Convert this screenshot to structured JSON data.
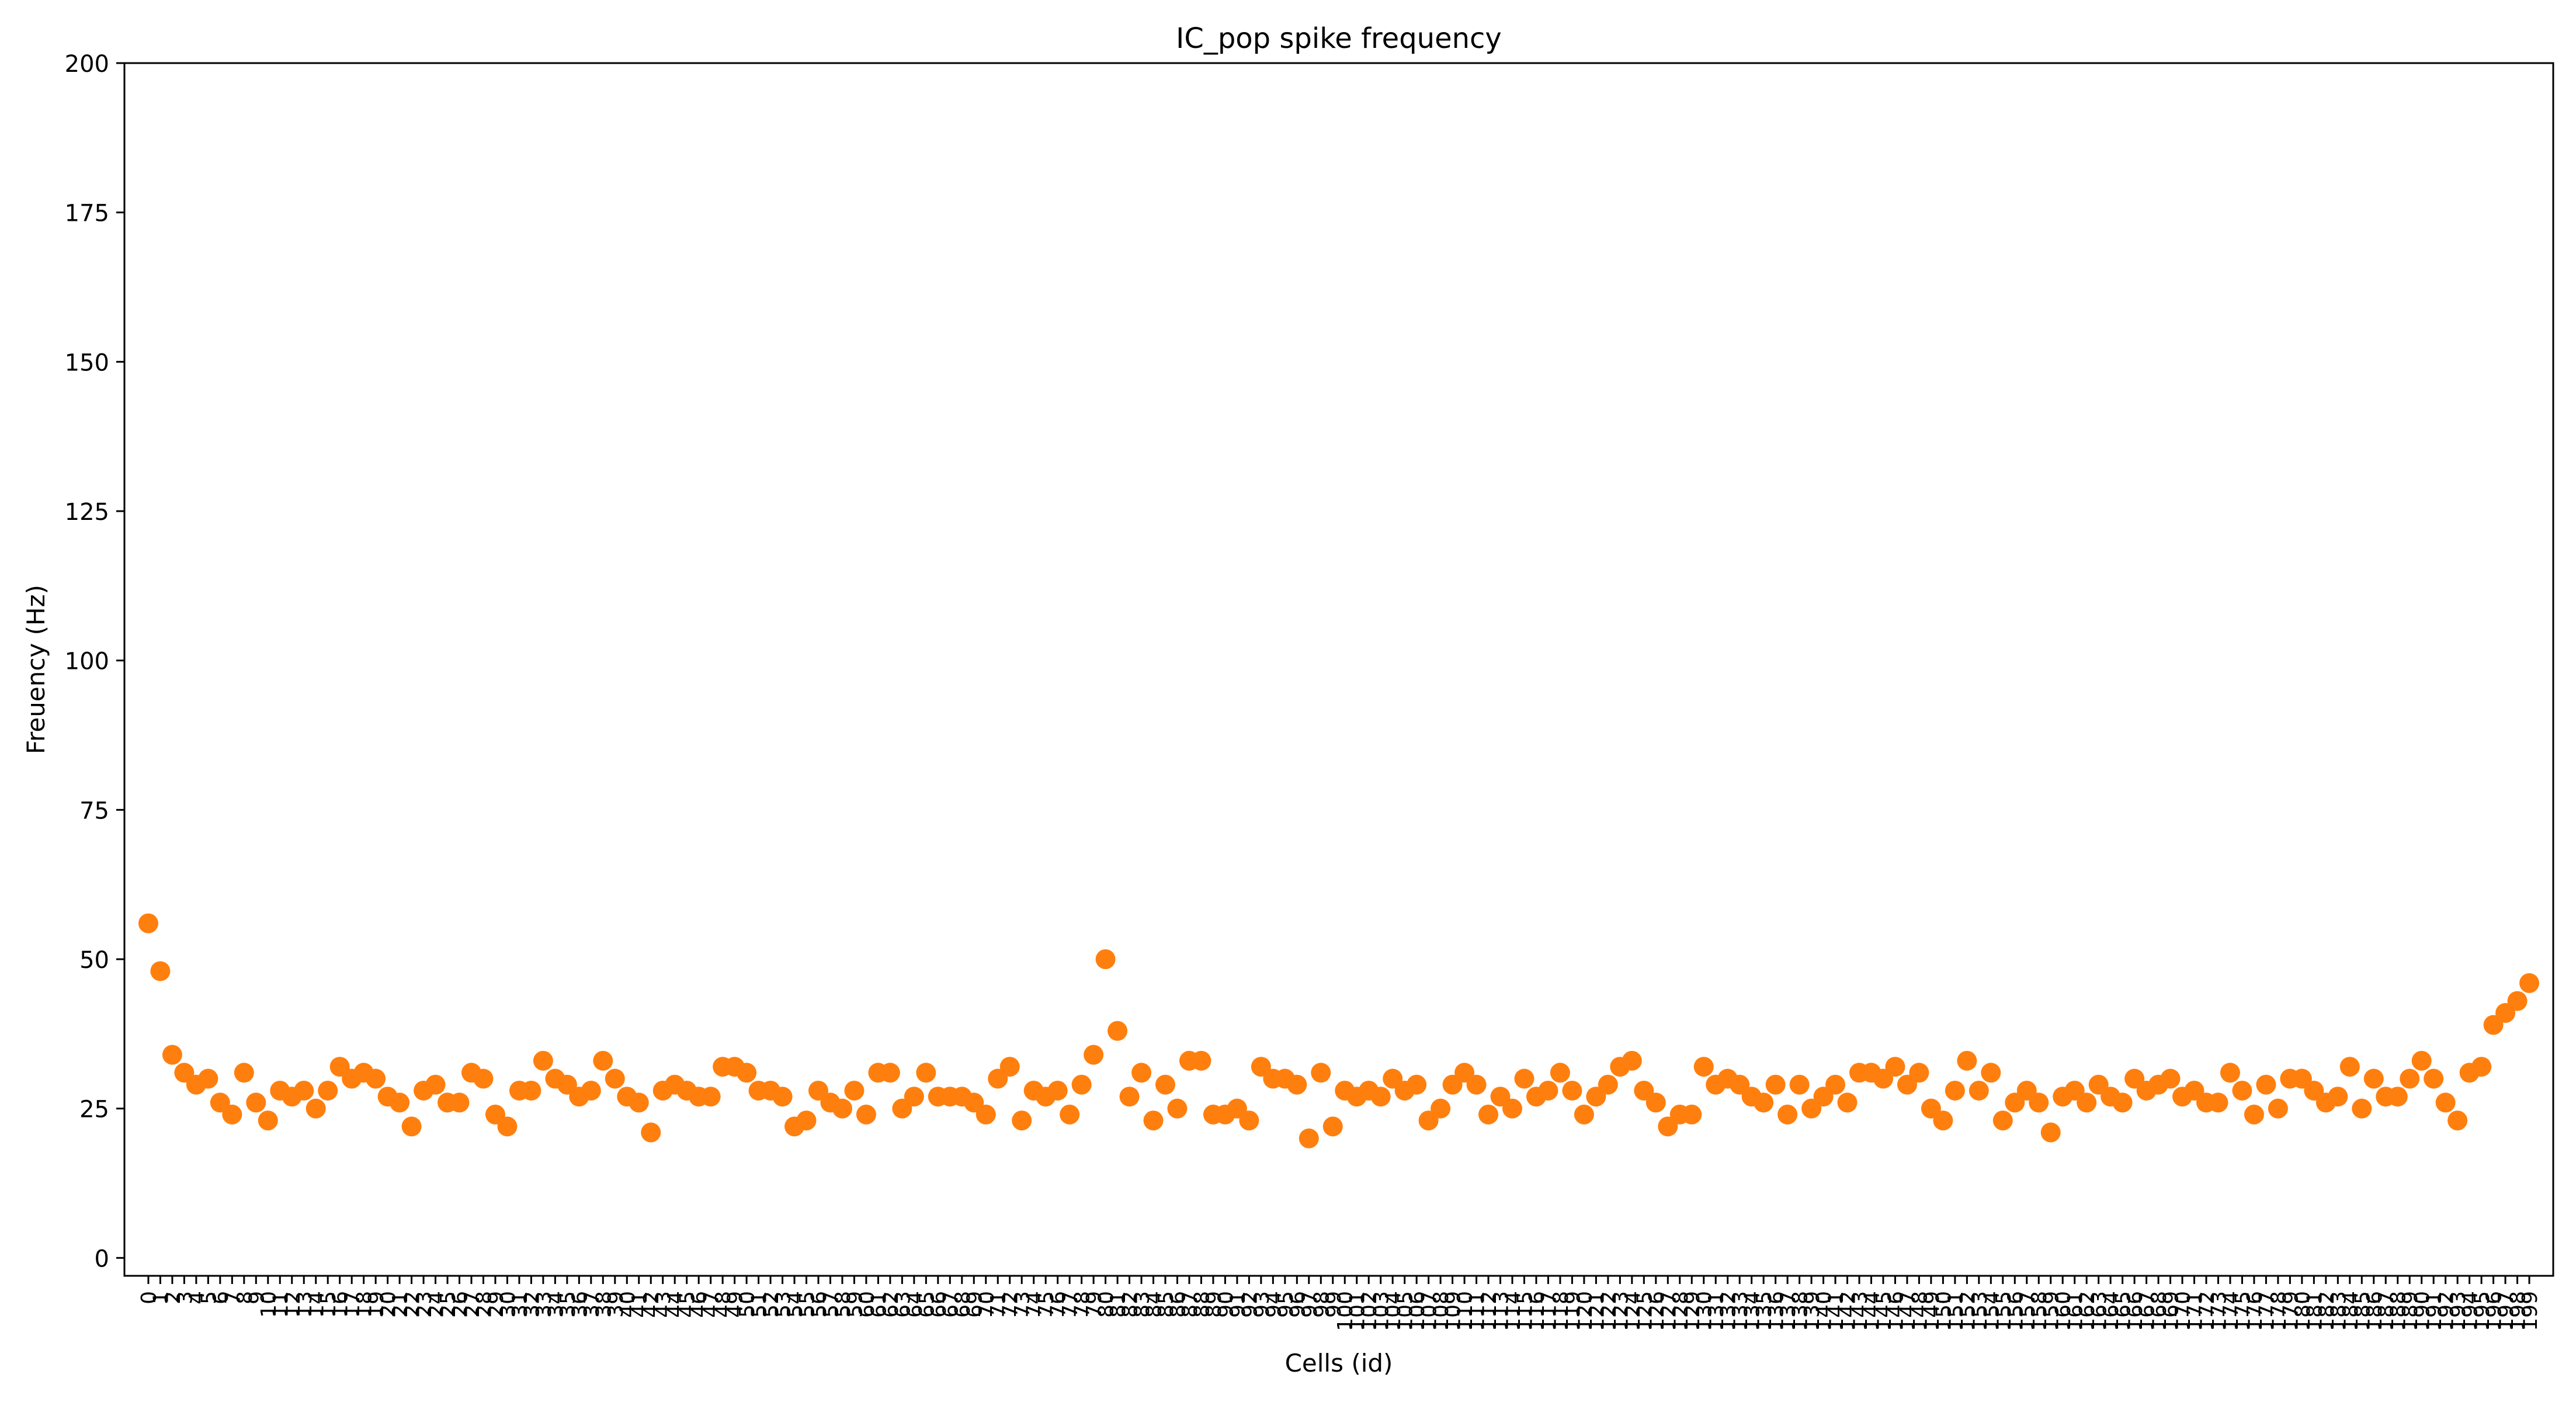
{
  "chart_data": {
    "type": "scatter",
    "title": "IC_pop spike frequency",
    "xlabel": "Cells (id)",
    "ylabel": "Freuency (Hz)",
    "ylim": [
      -3,
      200
    ],
    "xlim": [
      -2,
      201
    ],
    "yticks": [
      0,
      25,
      50,
      75,
      100,
      125,
      150,
      175,
      200
    ],
    "xticks": [
      0,
      1,
      2,
      3,
      4,
      5,
      6,
      7,
      8,
      9,
      10,
      11,
      12,
      13,
      14,
      15,
      16,
      17,
      18,
      19,
      20,
      21,
      22,
      23,
      24,
      25,
      26,
      27,
      28,
      29,
      30,
      31,
      32,
      33,
      34,
      35,
      36,
      37,
      38,
      39,
      40,
      41,
      42,
      43,
      44,
      45,
      46,
      47,
      48,
      49,
      50,
      51,
      52,
      53,
      54,
      55,
      56,
      57,
      58,
      59,
      60,
      61,
      62,
      63,
      64,
      65,
      66,
      67,
      68,
      69,
      70,
      71,
      72,
      73,
      74,
      75,
      76,
      77,
      78,
      79,
      80,
      81,
      82,
      83,
      84,
      85,
      86,
      87,
      88,
      89,
      90,
      91,
      92,
      93,
      94,
      95,
      96,
      97,
      98,
      99,
      100,
      101,
      102,
      103,
      104,
      105,
      106,
      107,
      108,
      109,
      110,
      111,
      112,
      113,
      114,
      115,
      116,
      117,
      118,
      119,
      120,
      121,
      122,
      123,
      124,
      125,
      126,
      127,
      128,
      129,
      130,
      131,
      132,
      133,
      134,
      135,
      136,
      137,
      138,
      139,
      140,
      141,
      142,
      143,
      144,
      145,
      146,
      147,
      148,
      149,
      150,
      151,
      152,
      153,
      154,
      155,
      156,
      157,
      158,
      159,
      160,
      161,
      162,
      163,
      164,
      165,
      166,
      167,
      168,
      169,
      170,
      171,
      172,
      173,
      174,
      175,
      176,
      177,
      178,
      179,
      180,
      181,
      182,
      183,
      184,
      185,
      186,
      187,
      188,
      189,
      190,
      191,
      192,
      193,
      194,
      195,
      196,
      197,
      198,
      199
    ],
    "marker_color": "#ff7f0e",
    "grid": false,
    "series": [
      {
        "values": [
          56,
          48,
          34,
          31,
          29,
          30,
          26,
          24,
          31,
          26,
          23,
          28,
          27,
          28,
          25,
          28,
          32,
          30,
          31,
          30,
          27,
          26,
          22,
          28,
          29,
          26,
          26,
          31,
          30,
          24,
          22,
          28,
          28,
          33,
          30,
          29,
          27,
          28,
          33,
          30,
          27,
          26,
          21,
          28,
          29,
          28,
          27,
          27,
          32,
          32,
          31,
          28,
          28,
          27,
          22,
          23,
          28,
          26,
          25,
          28,
          24,
          31,
          31,
          25,
          27,
          31,
          27,
          27,
          27,
          26,
          24,
          30,
          32,
          23,
          28,
          27,
          28,
          24,
          29,
          34,
          50,
          38,
          27,
          31,
          23,
          29,
          25,
          33,
          33,
          24,
          24,
          25,
          23,
          32,
          30,
          30,
          29,
          20,
          31,
          22,
          28,
          27,
          28,
          27,
          30,
          28,
          29,
          23,
          25,
          29,
          31,
          29,
          24,
          27,
          25,
          30,
          27,
          28,
          31,
          28,
          24,
          27,
          29,
          32,
          33,
          28,
          26,
          22,
          24,
          24,
          32,
          29,
          30,
          29,
          27,
          26,
          29,
          24,
          29,
          25,
          27,
          29,
          26,
          31,
          31,
          30,
          32,
          29,
          31,
          25,
          23,
          28,
          33,
          28,
          31,
          23,
          26,
          28,
          26,
          21,
          27,
          28,
          26,
          29,
          27,
          26,
          30,
          28,
          29,
          30,
          27,
          28,
          26,
          26,
          31,
          28,
          24,
          29,
          25,
          30,
          30,
          28,
          26,
          27,
          32,
          25,
          30,
          27,
          27,
          30,
          33,
          30,
          26,
          23,
          31,
          32,
          39,
          41,
          43,
          46
        ]
      }
    ]
  }
}
